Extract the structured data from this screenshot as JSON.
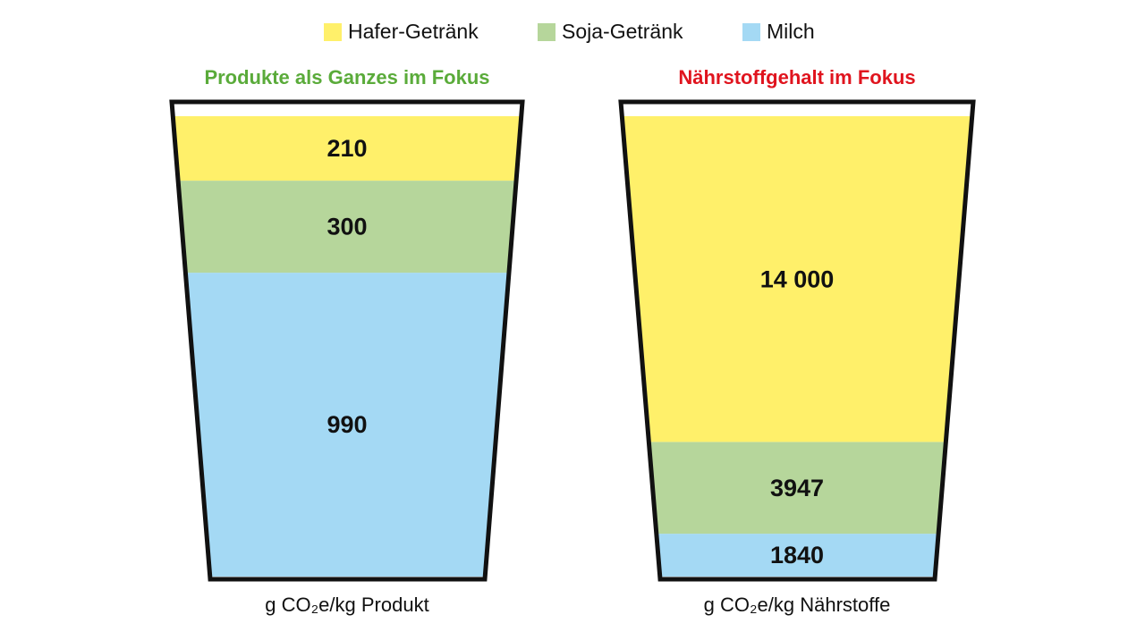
{
  "chart_data": {
    "type": "bar",
    "stacked": true,
    "categories": [
      "Produkte als Ganzes im Fokus",
      "Nährstoffgehalt im Fokus"
    ],
    "category_colors": [
      "#5aab3a",
      "#e0141e"
    ],
    "x_labels": [
      "g CO₂e/kg Produkt",
      "g CO₂e/kg Nährstoffe"
    ],
    "series": [
      {
        "name": "Hafer-Getränk",
        "color": "#fff06a",
        "values": [
          210,
          14000
        ],
        "value_labels": [
          "210",
          "14 000"
        ]
      },
      {
        "name": "Soja-Getränk",
        "color": "#b6d69b",
        "values": [
          300,
          3947
        ]
      },
      {
        "name": "Milch",
        "color": "#a4d9f4",
        "values": [
          990,
          1840
        ]
      }
    ]
  }
}
